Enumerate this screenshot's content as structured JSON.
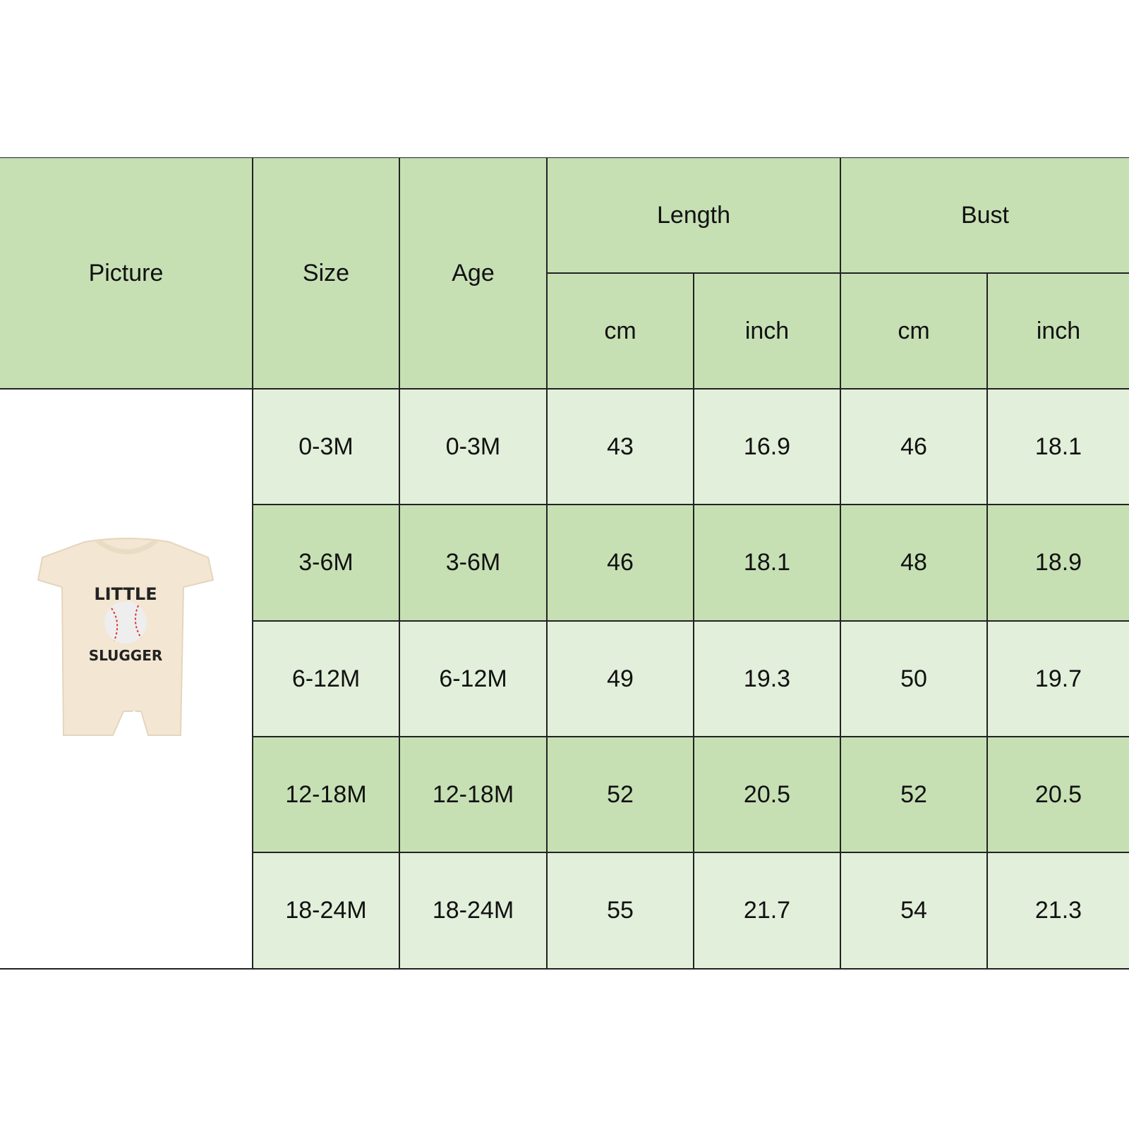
{
  "headers": {
    "picture": "Picture",
    "size": "Size",
    "age": "Age",
    "length": "Length",
    "bust": "Bust",
    "length_cm": "cm",
    "length_inch": "inch",
    "bust_cm": "cm",
    "bust_inch": "inch"
  },
  "rows": [
    {
      "size": "0-3M",
      "age": "0-3M",
      "length_cm": "43",
      "length_inch": "16.9",
      "bust_cm": "46",
      "bust_inch": "18.1"
    },
    {
      "size": "3-6M",
      "age": "3-6M",
      "length_cm": "46",
      "length_inch": "18.1",
      "bust_cm": "48",
      "bust_inch": "18.9"
    },
    {
      "size": "6-12M",
      "age": "6-12M",
      "length_cm": "49",
      "length_inch": "19.3",
      "bust_cm": "50",
      "bust_inch": "19.7"
    },
    {
      "size": "12-18M",
      "age": "12-18M",
      "length_cm": "52",
      "length_inch": "20.5",
      "bust_cm": "52",
      "bust_inch": "20.5"
    },
    {
      "size": "18-24M",
      "age": "18-24M",
      "length_cm": "55",
      "length_inch": "21.7",
      "bust_cm": "54",
      "bust_inch": "21.3"
    }
  ],
  "product_image": {
    "print_text_top": "LITTLE",
    "print_text_bottom": "SLUGGER"
  },
  "colors": {
    "header": "#c6e0b4",
    "row_light": "#e2efda",
    "row_dark": "#c6e0b4",
    "border": "#222222",
    "garment": "#f3e6d3"
  }
}
